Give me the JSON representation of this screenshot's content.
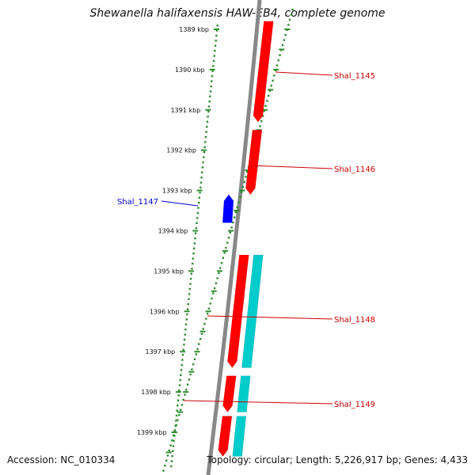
{
  "title": "Shewanella halifaxensis HAW-EB4, complete genome",
  "footer": {
    "accession": "Accession: NC_010334",
    "summary": "Topology: circular; Length: 5,226,917 bp; Genes: 4,433"
  },
  "colors": {
    "forward_gene": "#ff0000",
    "reverse_gene": "#0000ff",
    "feature_cds": "#00cccc",
    "backbone": "#888888",
    "ruler": "#2e8b2e",
    "forward_label": "#cc0000",
    "reverse_label": "#0000cc"
  },
  "ruler": {
    "labels": [
      "1389 kbp",
      "1390 kbp",
      "1391 kbp",
      "1392 kbp",
      "1393 kbp",
      "1394 kbp",
      "1395 kbp",
      "1396 kbp",
      "1397 kbp",
      "1398 kbp",
      "1399 kbp"
    ]
  },
  "genes": [
    {
      "name": "Shal_1145",
      "strand": "forward",
      "start_kbp": 1388.8,
      "end_kbp": 1391.3
    },
    {
      "name": "Shal_1146",
      "strand": "forward",
      "start_kbp": 1391.5,
      "end_kbp": 1393.1
    },
    {
      "name": "Shal_1147",
      "strand": "reverse",
      "start_kbp": 1393.1,
      "end_kbp": 1393.8
    },
    {
      "name": "Shal_1148",
      "strand": "forward",
      "start_kbp": 1394.6,
      "end_kbp": 1397.4
    },
    {
      "name": "Shal_1149",
      "strand": "forward",
      "start_kbp": 1397.6,
      "end_kbp": 1398.5
    },
    {
      "name": "",
      "strand": "forward",
      "start_kbp": 1398.6,
      "end_kbp": 1399.6
    }
  ]
}
